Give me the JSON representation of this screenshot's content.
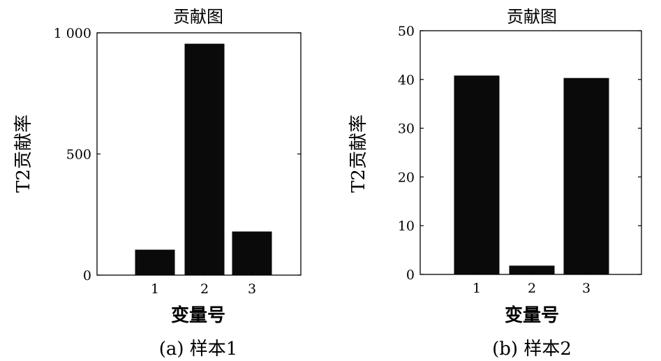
{
  "figure": {
    "captions": [
      "(a) 样本1",
      "(b) 样本2"
    ]
  },
  "chart_data": [
    {
      "type": "bar",
      "title": "贡献图",
      "xlabel": "变量号",
      "ylabel": "T2贡献率",
      "categories": [
        "1",
        "2",
        "3"
      ],
      "values": [
        105,
        955,
        180
      ],
      "ylim": [
        0,
        1000
      ],
      "yticks": [
        0,
        500,
        1000
      ],
      "ytick_labels": [
        "0",
        "500",
        "1 000"
      ],
      "bar_color": "#0a0a0a",
      "grid": false,
      "legend": "none"
    },
    {
      "type": "bar",
      "title": "贡献图",
      "xlabel": "变量号",
      "ylabel": "T2贡献率",
      "categories": [
        "1",
        "2",
        "3"
      ],
      "values": [
        40.8,
        1.8,
        40.3
      ],
      "ylim": [
        0,
        50
      ],
      "yticks": [
        0,
        10,
        20,
        30,
        40,
        50
      ],
      "ytick_labels": [
        "0",
        "10",
        "20",
        "30",
        "40",
        "50"
      ],
      "bar_color": "#0a0a0a",
      "grid": false,
      "legend": "none"
    }
  ]
}
